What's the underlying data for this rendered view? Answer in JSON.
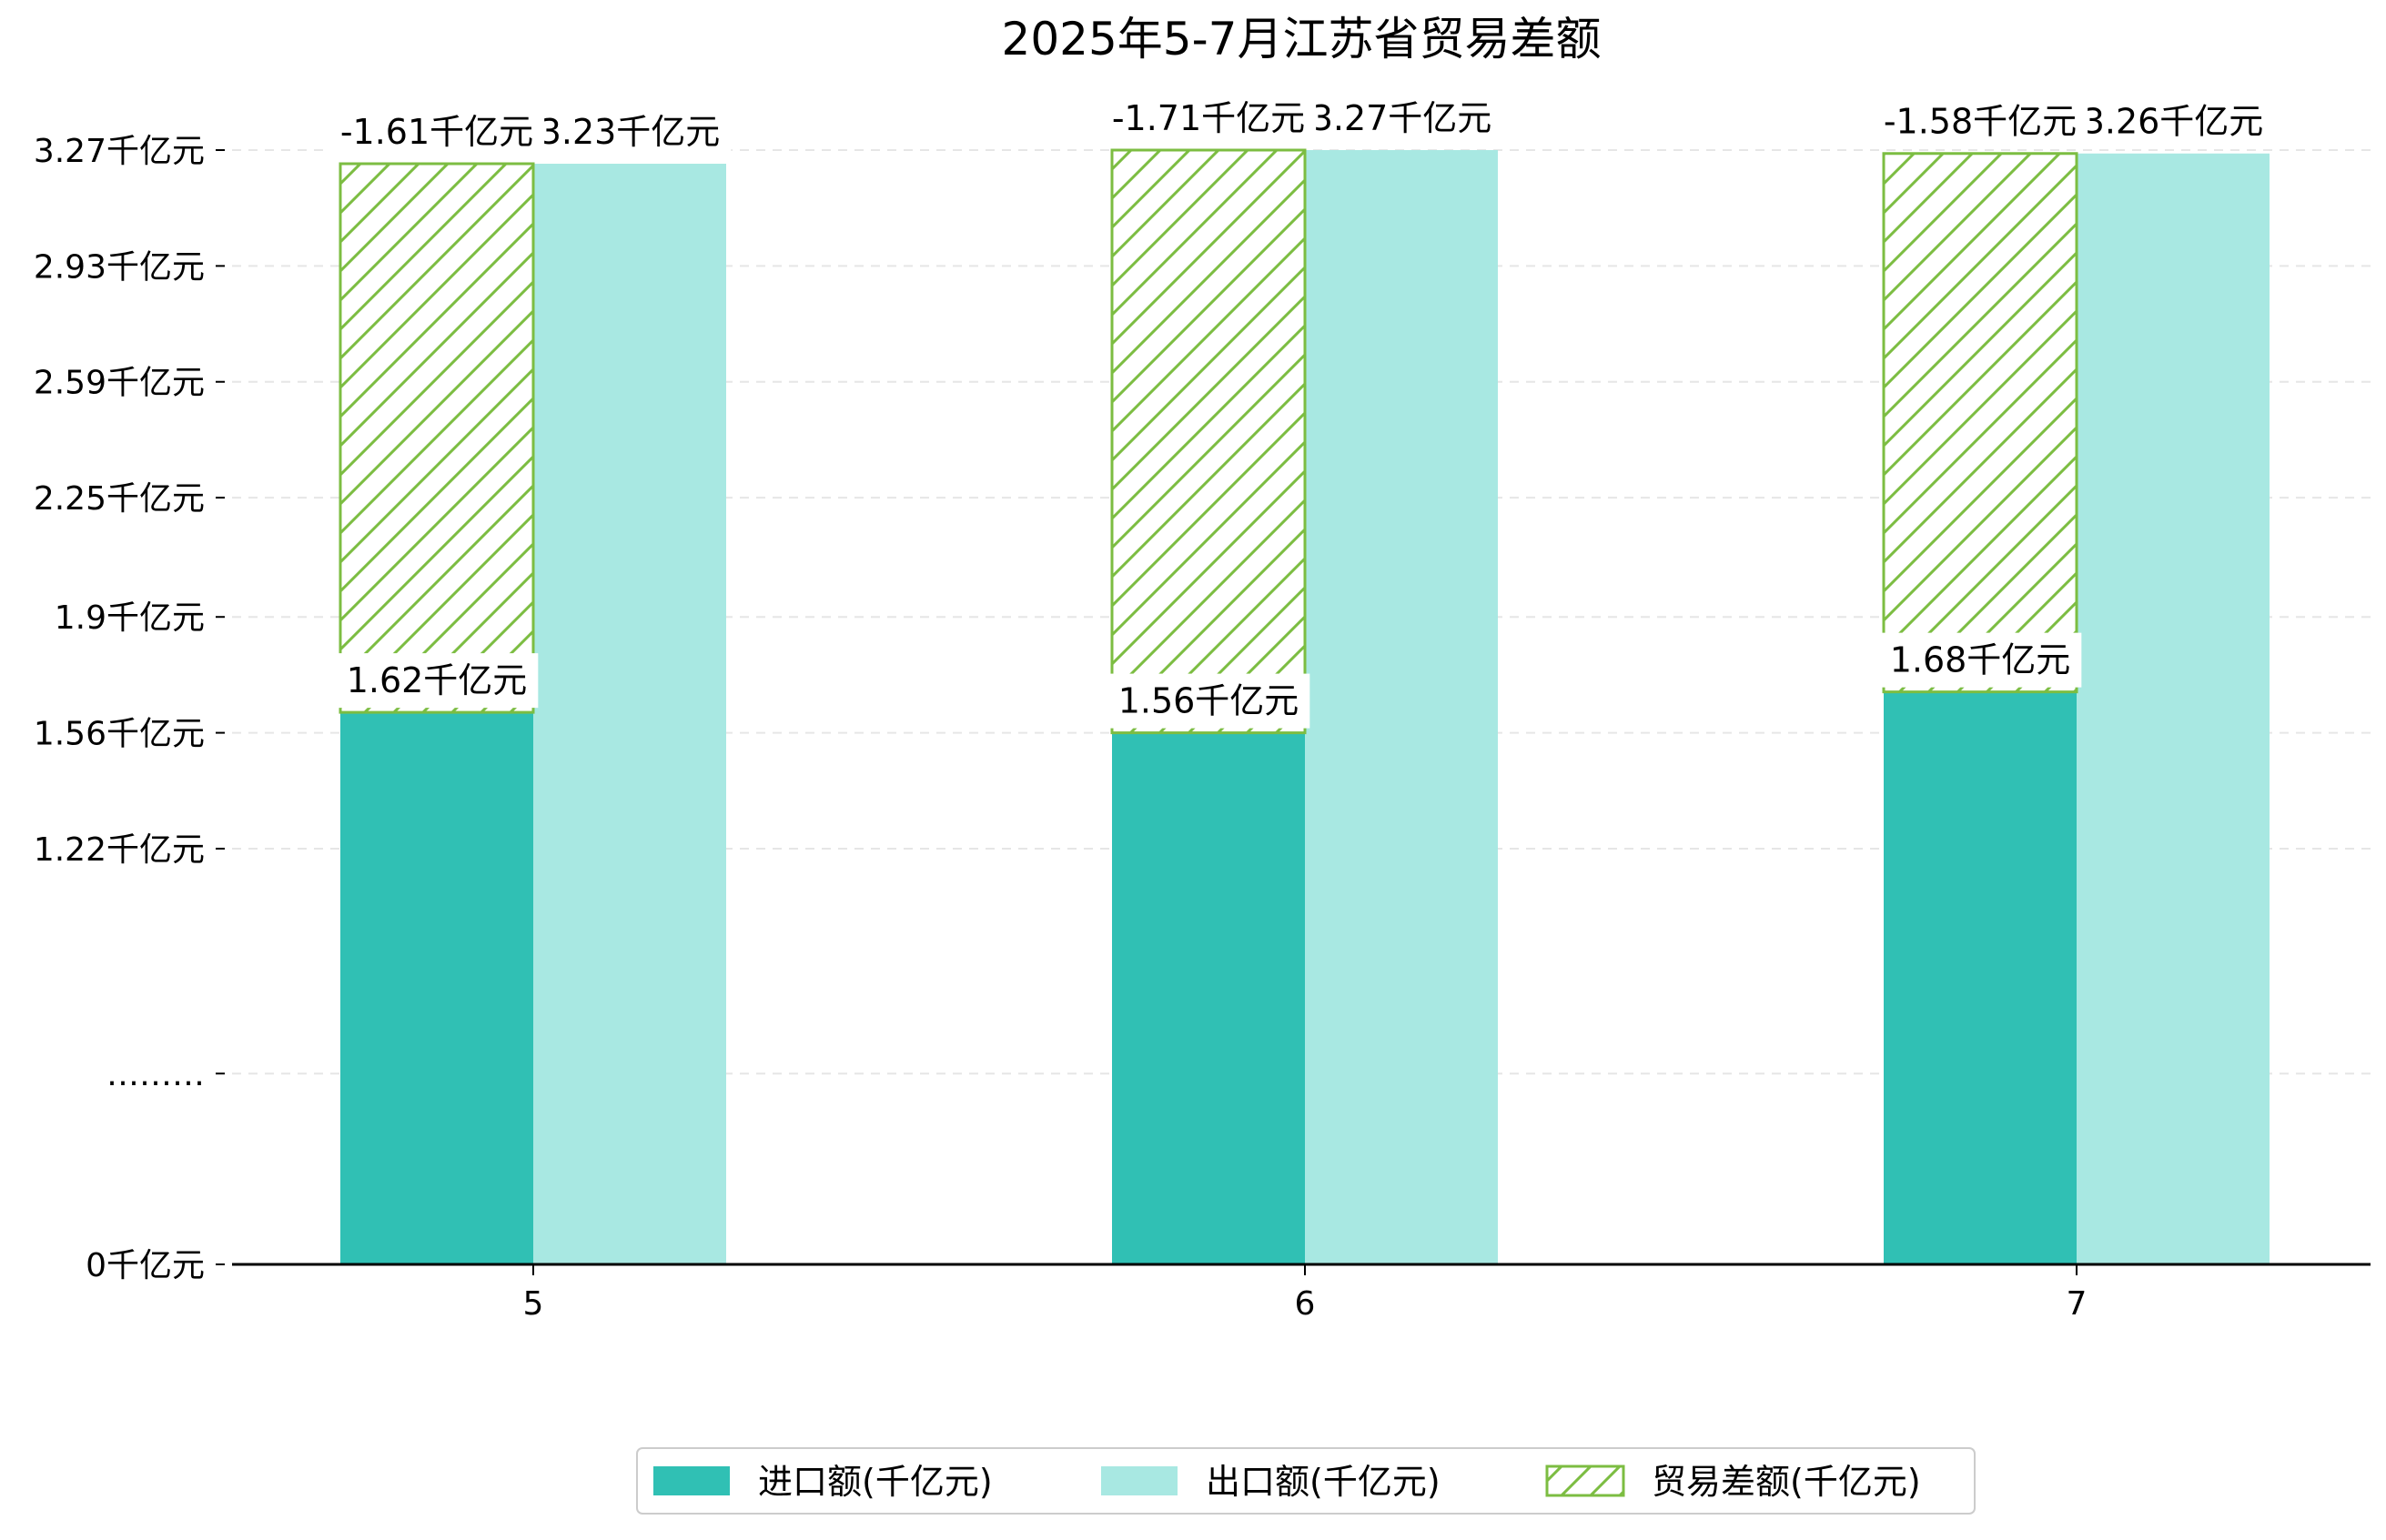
{
  "chart_data": {
    "type": "bar",
    "title": "2025年5-7月江苏省贸易差额",
    "xlabel": "",
    "ylabel": "",
    "categories": [
      "5",
      "6",
      "7"
    ],
    "yticks": [
      {
        "value": 0,
        "label": "0千亿元"
      },
      {
        "value": 0.56,
        "label": "………"
      },
      {
        "value": 1.22,
        "label": "1.22千亿元"
      },
      {
        "value": 1.56,
        "label": "1.56千亿元"
      },
      {
        "value": 1.9,
        "label": "1.9千亿元"
      },
      {
        "value": 2.25,
        "label": "2.25千亿元"
      },
      {
        "value": 2.59,
        "label": "2.59千亿元"
      },
      {
        "value": 2.93,
        "label": "2.93千亿元"
      },
      {
        "value": 3.27,
        "label": "3.27千亿元"
      }
    ],
    "ylim": [
      0,
      3.27
    ],
    "grid": true,
    "legend_position": "bottom-center",
    "series": [
      {
        "name": "进口额(千亿元)",
        "color": "#30c0b4",
        "pattern": "solid",
        "values": [
          1.62,
          1.56,
          1.68
        ],
        "labels": [
          "1.62千亿元",
          "1.56千亿元",
          "1.68千亿元"
        ]
      },
      {
        "name": "出口额(千亿元)",
        "color": "#a8e8e2",
        "pattern": "solid",
        "values": [
          3.23,
          3.27,
          3.26
        ],
        "labels": [
          "3.23千亿元",
          "3.27千亿元",
          "3.26千亿元"
        ]
      },
      {
        "name": "贸易差额(千亿元)",
        "color": "#7cbd42",
        "pattern": "hatch",
        "values": [
          -1.61,
          -1.71,
          -1.58
        ],
        "labels": [
          "-1.61千亿元",
          "-1.71千亿元",
          "-1.58千亿元"
        ]
      }
    ]
  }
}
